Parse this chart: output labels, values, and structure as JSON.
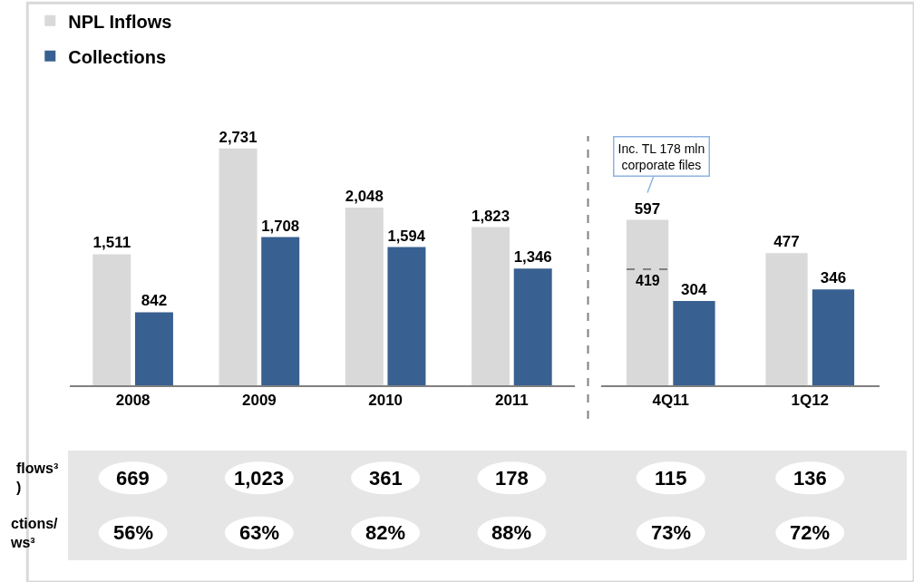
{
  "chart_data": [
    {
      "type": "bar",
      "categories": [
        "2008",
        "2009",
        "2010",
        "2011"
      ],
      "series": [
        {
          "name": "NPL Inflows",
          "color": "#d9d9d9",
          "values": [
            1511,
            2731,
            2048,
            1823
          ],
          "value_labels": [
            "1,511",
            "2,731",
            "2,048",
            "1,823"
          ]
        },
        {
          "name": "Collections",
          "color": "#386090",
          "values": [
            842,
            1708,
            1594,
            1346
          ],
          "value_labels": [
            "842",
            "1,708",
            "1,594",
            "1,346"
          ]
        }
      ],
      "tick_labels": "x",
      "legend": "top left"
    },
    {
      "type": "bar",
      "categories": [
        "4Q11",
        "1Q12"
      ],
      "series": [
        {
          "color": "#d9d9d9",
          "values": [
            597,
            477
          ]
        },
        {
          "color": "#386090",
          "values": [
            304,
            346
          ]
        }
      ],
      "data_labels": true,
      "tick_labels": "x",
      "annotations": [
        "Inc. TL 178 mln\ncorporate files",
        {
          "text": "419",
          "x": "4Q11",
          "y": 419
        }
      ]
    },
    {
      "type": "other",
      "annotations": [
        "flows³\n)",
        "669",
        "1,023",
        "361",
        "178",
        "115",
        "136",
        "ctions/\nws³",
        "56%",
        "63%",
        "82%",
        "88%",
        "73%",
        "72%"
      ]
    }
  ]
}
